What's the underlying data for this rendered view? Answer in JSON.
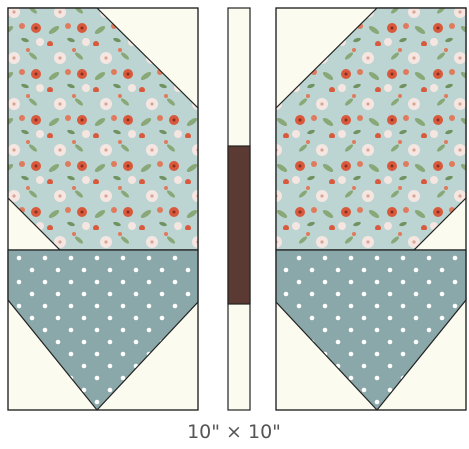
{
  "caption": "10\" × 10\""
}
